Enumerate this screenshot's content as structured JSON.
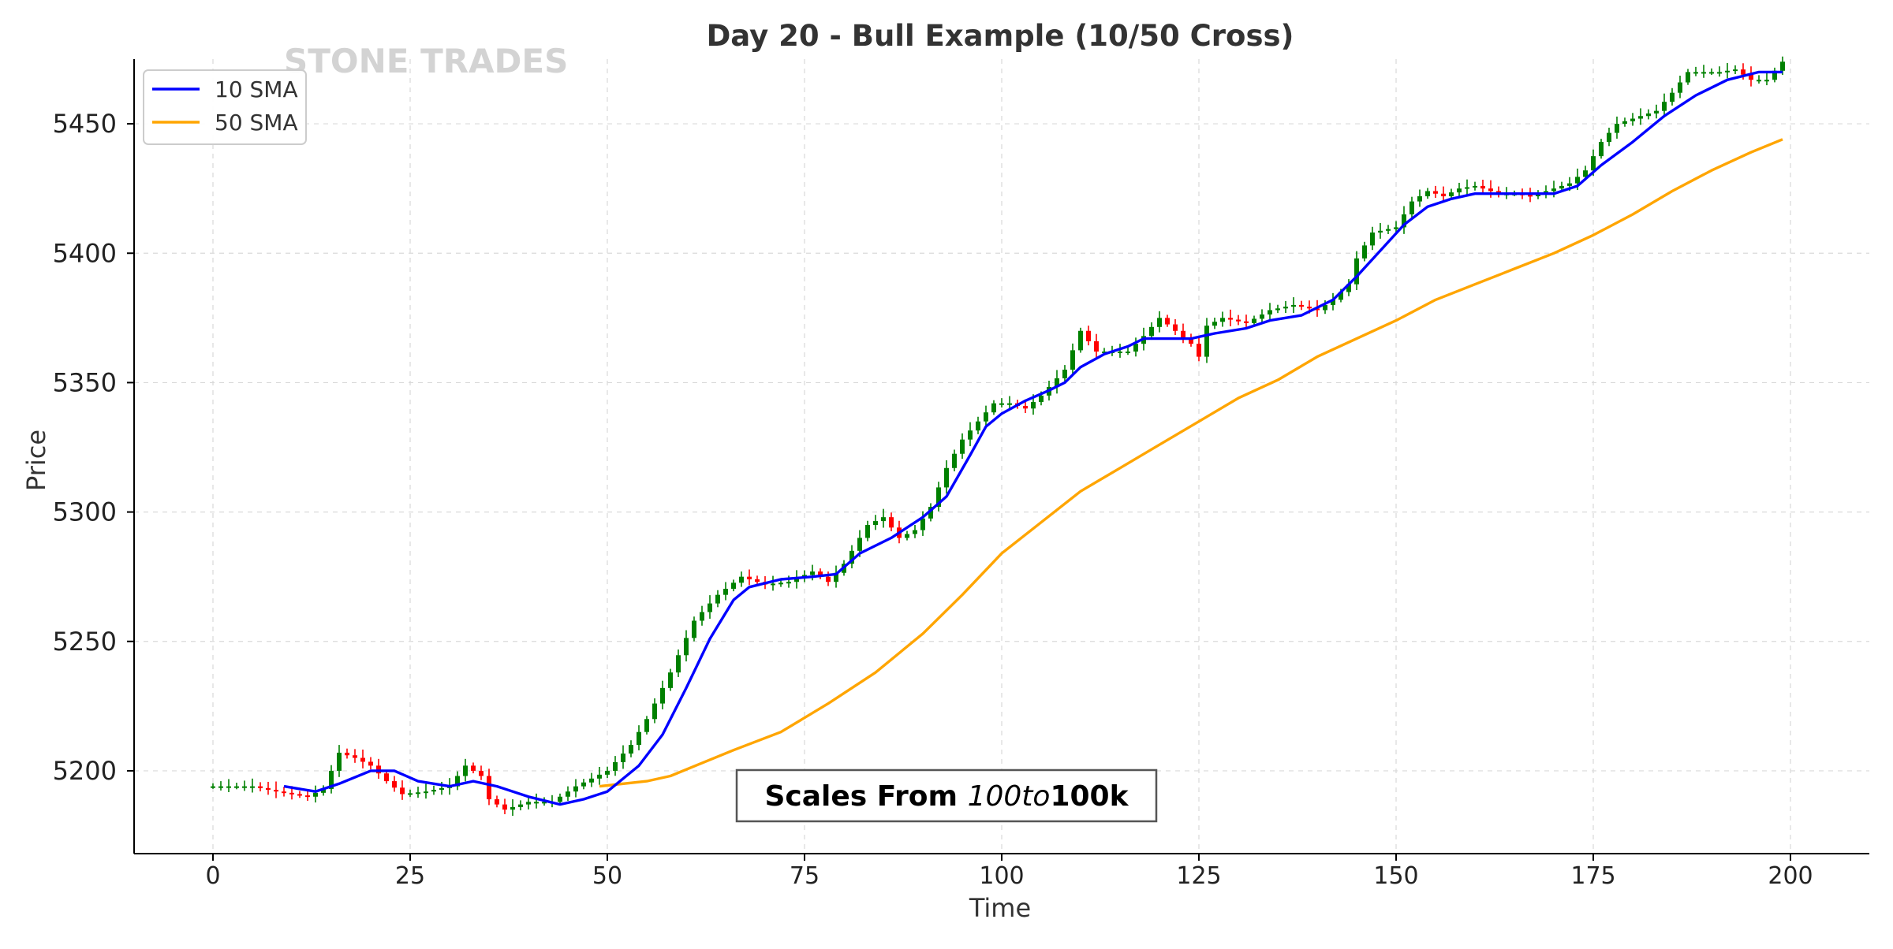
{
  "chart_data": {
    "type": "candlestick",
    "title": "Day 20 - Bull Example (10/50 Cross)",
    "watermark": "STONE TRADES",
    "annotation": {
      "prefix": "Scales From ",
      "middle": "100to",
      "suffix": "100k"
    },
    "xlabel": "Time",
    "ylabel": "Price",
    "xlim": [
      -10,
      210
    ],
    "ylim": [
      5168,
      5475
    ],
    "x_ticks": [
      0,
      25,
      50,
      75,
      100,
      125,
      150,
      175,
      200
    ],
    "y_ticks": [
      5200,
      5250,
      5300,
      5350,
      5400,
      5450
    ],
    "grid": true,
    "legend_position": "top-left",
    "colors": {
      "up": "#008000",
      "down": "#ff0000",
      "sma10": "#0000ff",
      "sma50": "#ffa500",
      "grid": "#d9d9d9",
      "watermark": "#d3d3d3"
    },
    "close_keypoints": [
      [
        0,
        5194
      ],
      [
        5,
        5194
      ],
      [
        8,
        5192
      ],
      [
        12,
        5190
      ],
      [
        14,
        5193
      ],
      [
        16,
        5207
      ],
      [
        18,
        5205
      ],
      [
        20,
        5202
      ],
      [
        22,
        5196
      ],
      [
        24,
        5191
      ],
      [
        27,
        5192
      ],
      [
        30,
        5194
      ],
      [
        32,
        5202
      ],
      [
        34,
        5198
      ],
      [
        35,
        5189
      ],
      [
        37,
        5185
      ],
      [
        40,
        5188
      ],
      [
        43,
        5188
      ],
      [
        46,
        5194
      ],
      [
        50,
        5200
      ],
      [
        53,
        5210
      ],
      [
        55,
        5220
      ],
      [
        58,
        5238
      ],
      [
        61,
        5258
      ],
      [
        64,
        5268
      ],
      [
        67,
        5275
      ],
      [
        70,
        5272
      ],
      [
        73,
        5273
      ],
      [
        76,
        5277
      ],
      [
        78,
        5273
      ],
      [
        80,
        5280
      ],
      [
        83,
        5295
      ],
      [
        85,
        5298
      ],
      [
        87,
        5290
      ],
      [
        89,
        5293
      ],
      [
        91,
        5302
      ],
      [
        93,
        5317
      ],
      [
        95,
        5328
      ],
      [
        97,
        5335
      ],
      [
        99,
        5342
      ],
      [
        101,
        5342
      ],
      [
        103,
        5340
      ],
      [
        105,
        5345
      ],
      [
        108,
        5355
      ],
      [
        110,
        5370
      ],
      [
        112,
        5362
      ],
      [
        114,
        5362
      ],
      [
        116,
        5362
      ],
      [
        118,
        5368
      ],
      [
        120,
        5375
      ],
      [
        122,
        5370
      ],
      [
        124,
        5365
      ],
      [
        125,
        5360
      ],
      [
        126,
        5372
      ],
      [
        128,
        5375
      ],
      [
        131,
        5373
      ],
      [
        134,
        5378
      ],
      [
        137,
        5380
      ],
      [
        140,
        5378
      ],
      [
        142,
        5382
      ],
      [
        144,
        5388
      ],
      [
        145,
        5398
      ],
      [
        147,
        5408
      ],
      [
        150,
        5410
      ],
      [
        152,
        5420
      ],
      [
        154,
        5424
      ],
      [
        156,
        5422
      ],
      [
        158,
        5425
      ],
      [
        160,
        5426
      ],
      [
        163,
        5423
      ],
      [
        165,
        5423
      ],
      [
        167,
        5422
      ],
      [
        170,
        5425
      ],
      [
        172,
        5427
      ],
      [
        174,
        5432
      ],
      [
        176,
        5443
      ],
      [
        178,
        5450
      ],
      [
        180,
        5452
      ],
      [
        183,
        5455
      ],
      [
        185,
        5462
      ],
      [
        187,
        5470
      ],
      [
        189,
        5470
      ],
      [
        191,
        5470
      ],
      [
        193,
        5471
      ],
      [
        195,
        5467
      ],
      [
        197,
        5467
      ],
      [
        199,
        5474
      ]
    ],
    "sma10_keypoints": [
      [
        9,
        5194
      ],
      [
        13,
        5192
      ],
      [
        16,
        5195
      ],
      [
        20,
        5200
      ],
      [
        23,
        5200
      ],
      [
        26,
        5196
      ],
      [
        30,
        5194
      ],
      [
        33,
        5196
      ],
      [
        36,
        5194
      ],
      [
        40,
        5190
      ],
      [
        44,
        5187
      ],
      [
        47,
        5189
      ],
      [
        50,
        5192
      ],
      [
        54,
        5202
      ],
      [
        57,
        5214
      ],
      [
        60,
        5232
      ],
      [
        63,
        5251
      ],
      [
        66,
        5266
      ],
      [
        68,
        5271
      ],
      [
        72,
        5274
      ],
      [
        76,
        5275
      ],
      [
        79,
        5276
      ],
      [
        82,
        5284
      ],
      [
        86,
        5290
      ],
      [
        90,
        5298
      ],
      [
        93,
        5306
      ],
      [
        96,
        5322
      ],
      [
        98,
        5333
      ],
      [
        100,
        5338
      ],
      [
        103,
        5343
      ],
      [
        106,
        5347
      ],
      [
        108,
        5350
      ],
      [
        110,
        5356
      ],
      [
        113,
        5361
      ],
      [
        116,
        5364
      ],
      [
        118,
        5367
      ],
      [
        121,
        5367
      ],
      [
        124,
        5367
      ],
      [
        127,
        5369
      ],
      [
        131,
        5371
      ],
      [
        134,
        5374
      ],
      [
        138,
        5376
      ],
      [
        142,
        5382
      ],
      [
        145,
        5391
      ],
      [
        148,
        5401
      ],
      [
        151,
        5411
      ],
      [
        154,
        5418
      ],
      [
        157,
        5421
      ],
      [
        160,
        5423
      ],
      [
        165,
        5423
      ],
      [
        170,
        5423
      ],
      [
        173,
        5426
      ],
      [
        176,
        5434
      ],
      [
        180,
        5443
      ],
      [
        184,
        5453
      ],
      [
        188,
        5461
      ],
      [
        192,
        5467
      ],
      [
        196,
        5470
      ],
      [
        199,
        5470
      ]
    ],
    "sma50_keypoints": [
      [
        49,
        5194
      ],
      [
        55,
        5196
      ],
      [
        58,
        5198
      ],
      [
        62,
        5203
      ],
      [
        66,
        5208
      ],
      [
        72,
        5215
      ],
      [
        78,
        5226
      ],
      [
        84,
        5238
      ],
      [
        90,
        5253
      ],
      [
        95,
        5268
      ],
      [
        100,
        5284
      ],
      [
        105,
        5296
      ],
      [
        110,
        5308
      ],
      [
        115,
        5317
      ],
      [
        120,
        5326
      ],
      [
        125,
        5335
      ],
      [
        130,
        5344
      ],
      [
        135,
        5351
      ],
      [
        140,
        5360
      ],
      [
        145,
        5367
      ],
      [
        150,
        5374
      ],
      [
        155,
        5382
      ],
      [
        160,
        5388
      ],
      [
        165,
        5394
      ],
      [
        170,
        5400
      ],
      [
        175,
        5407
      ],
      [
        180,
        5415
      ],
      [
        185,
        5424
      ],
      [
        190,
        5432
      ],
      [
        195,
        5439
      ],
      [
        199,
        5444
      ]
    ]
  }
}
